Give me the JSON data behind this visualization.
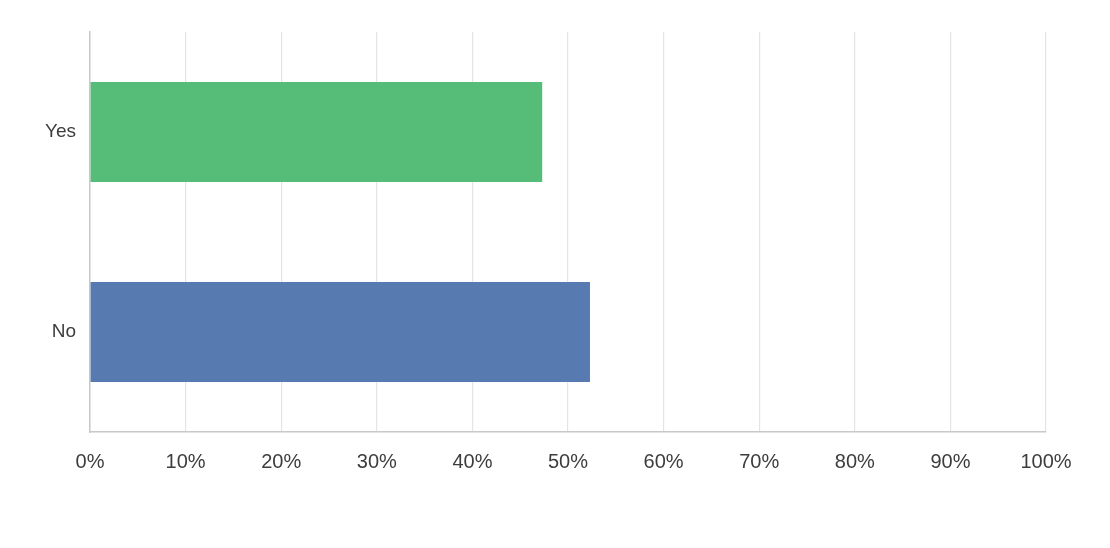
{
  "chart_data": {
    "type": "bar",
    "orientation": "horizontal",
    "categories": [
      "Yes",
      "No"
    ],
    "values": [
      47.3,
      52.3
    ],
    "colors": [
      "#55bd77",
      "#577bb1"
    ],
    "xlim": [
      0,
      100
    ],
    "xticks": [
      {
        "value": 0,
        "label": "0%"
      },
      {
        "value": 10,
        "label": "10%"
      },
      {
        "value": 20,
        "label": "20%"
      },
      {
        "value": 30,
        "label": "30%"
      },
      {
        "value": 40,
        "label": "40%"
      },
      {
        "value": 50,
        "label": "50%"
      },
      {
        "value": 60,
        "label": "60%"
      },
      {
        "value": 70,
        "label": "70%"
      },
      {
        "value": 80,
        "label": "80%"
      },
      {
        "value": 90,
        "label": "90%"
      },
      {
        "value": 100,
        "label": "100%"
      }
    ],
    "grid": "x"
  }
}
